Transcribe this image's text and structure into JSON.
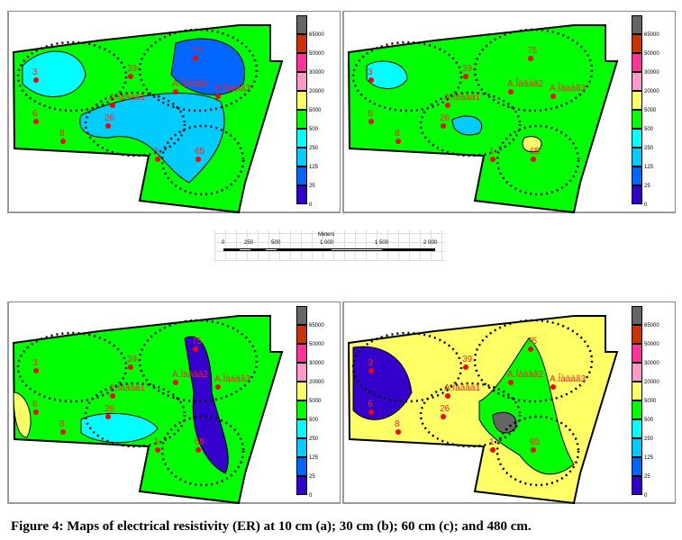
{
  "legend": {
    "colors": [
      "#666666",
      "#cc3300",
      "#ff3399",
      "#ff99cc",
      "#ffff66",
      "#00ff00",
      "#00ffff",
      "#00ccff",
      "#0066ff",
      "#3300cc"
    ],
    "labels": [
      "65000",
      "50000",
      "30000",
      "20000",
      "5000",
      "500",
      "250",
      "125",
      "25",
      "0"
    ]
  },
  "points": [
    "3",
    "39",
    "75",
    "6",
    "26",
    "8",
    "1",
    "65",
    "A.Îàäàã1",
    "A.Îàäàã2",
    "A.Îàäàã3"
  ],
  "panels": [
    {
      "id": "a",
      "background": "#00ff00",
      "blobs": [
        "#00ffff",
        "#00ccff",
        "#0066ff"
      ]
    },
    {
      "id": "b",
      "background": "#00ff00",
      "blobs": [
        "#00ffff",
        "#00ccff",
        "#ffff66"
      ]
    },
    {
      "id": "c",
      "background": "#00ff00",
      "blobs": [
        "#00ffff",
        "#3300cc",
        "#ffff66"
      ]
    },
    {
      "id": "d",
      "background": "#ffff66",
      "blobs": [
        "#3300cc",
        "#00ff00",
        "#666666"
      ]
    }
  ],
  "scale": {
    "title": "Meters",
    "ticks": [
      "0",
      "250",
      "500",
      "1 000",
      "1 500",
      "2 000"
    ]
  },
  "caption": "Figure 4: Maps of electrical  resistivity  (ER) at 10 cm (a); 30 cm (b); 60 cm (c); and 480 cm."
}
